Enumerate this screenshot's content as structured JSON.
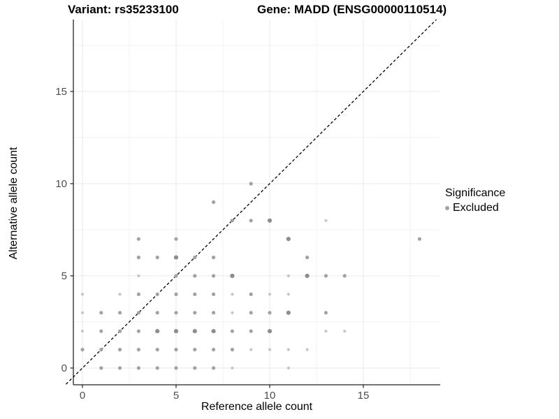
{
  "chart_data": {
    "type": "scatter",
    "title_left": "Variant: rs35233100",
    "title_right": "Gene: MADD (ENSG00000110514)",
    "xlabel": "Reference allele count",
    "ylabel": "Alternative allele count",
    "xlim": [
      -0.5,
      19.1
    ],
    "ylim": [
      -0.9,
      18.9
    ],
    "x_major_ticks": [
      0,
      5,
      10,
      15
    ],
    "y_major_ticks": [
      0,
      5,
      10,
      15
    ],
    "x_minor_gridlines": [
      2.5,
      7.5,
      12.5,
      17.5
    ],
    "y_minor_gridlines": [
      2.5,
      7.5,
      12.5,
      17.5
    ],
    "grid": true,
    "identity_line": {
      "type": "y=x",
      "style": "dashed",
      "color": "#000000"
    },
    "legend": {
      "title": "Significance",
      "position": "right",
      "items": [
        {
          "label": "Excluded",
          "color": "#a2a2a2"
        }
      ]
    },
    "point_styles": {
      "1": {
        "color": "#c6c6c6",
        "r": 2.1
      },
      "2": {
        "color": "#a2a2a2",
        "r": 2.6
      },
      "3": {
        "color": "#8d8d8d",
        "r": 3.1
      }
    },
    "points_format": [
      "reference_allele_count",
      "alternative_allele_count",
      "shade_weight"
    ],
    "points": [
      [
        1,
        0,
        2
      ],
      [
        2,
        0,
        2
      ],
      [
        3,
        0,
        2
      ],
      [
        4,
        0,
        2
      ],
      [
        5,
        0,
        2
      ],
      [
        6,
        0,
        2
      ],
      [
        7,
        0,
        2
      ],
      [
        8,
        0,
        1
      ],
      [
        11,
        0,
        1
      ],
      [
        0,
        1,
        2
      ],
      [
        1,
        1,
        2
      ],
      [
        2,
        1,
        2
      ],
      [
        3,
        1,
        2
      ],
      [
        4,
        1,
        2
      ],
      [
        5,
        1,
        2
      ],
      [
        6,
        1,
        2
      ],
      [
        7,
        1,
        2
      ],
      [
        8,
        1,
        2
      ],
      [
        9,
        1,
        1
      ],
      [
        10,
        1,
        1
      ],
      [
        11,
        1,
        1
      ],
      [
        12,
        1,
        1
      ],
      [
        0,
        2,
        1
      ],
      [
        1,
        2,
        2
      ],
      [
        2,
        2,
        2
      ],
      [
        3,
        2,
        2
      ],
      [
        4,
        2,
        3
      ],
      [
        5,
        2,
        3
      ],
      [
        6,
        2,
        3
      ],
      [
        7,
        2,
        3
      ],
      [
        8,
        2,
        2
      ],
      [
        9,
        2,
        2
      ],
      [
        10,
        2,
        3
      ],
      [
        13,
        2,
        1
      ],
      [
        14,
        2,
        1
      ],
      [
        0,
        3,
        1
      ],
      [
        1,
        3,
        2
      ],
      [
        2,
        3,
        2
      ],
      [
        3,
        3,
        2
      ],
      [
        4,
        3,
        2
      ],
      [
        5,
        3,
        2
      ],
      [
        6,
        3,
        2
      ],
      [
        7,
        3,
        2
      ],
      [
        8,
        3,
        1
      ],
      [
        9,
        3,
        2
      ],
      [
        10,
        3,
        2
      ],
      [
        11,
        3,
        3
      ],
      [
        13,
        3,
        2
      ],
      [
        0,
        4,
        1
      ],
      [
        2,
        4,
        1
      ],
      [
        3,
        4,
        2
      ],
      [
        4,
        4,
        2
      ],
      [
        5,
        4,
        2
      ],
      [
        6,
        4,
        2
      ],
      [
        7,
        4,
        2
      ],
      [
        8,
        4,
        1
      ],
      [
        9,
        4,
        2
      ],
      [
        10,
        4,
        1
      ],
      [
        11,
        4,
        1
      ],
      [
        3,
        5,
        1
      ],
      [
        5,
        5,
        2
      ],
      [
        6,
        5,
        2
      ],
      [
        7,
        5,
        2
      ],
      [
        8,
        5,
        3
      ],
      [
        11,
        5,
        1
      ],
      [
        12,
        5,
        3
      ],
      [
        13,
        5,
        2
      ],
      [
        14,
        5,
        2
      ],
      [
        3,
        6,
        2
      ],
      [
        4,
        6,
        2
      ],
      [
        5,
        6,
        3
      ],
      [
        6,
        6,
        2
      ],
      [
        7,
        6,
        2
      ],
      [
        12,
        6,
        2
      ],
      [
        3,
        7,
        2
      ],
      [
        5,
        7,
        2
      ],
      [
        11,
        7,
        3
      ],
      [
        18,
        7,
        2
      ],
      [
        8,
        8,
        2
      ],
      [
        9,
        8,
        2
      ],
      [
        10,
        8,
        3
      ],
      [
        13,
        8,
        1
      ],
      [
        7,
        9,
        2
      ],
      [
        9,
        10,
        2
      ]
    ]
  },
  "colors": {
    "background": "#ffffff",
    "axis_line": "#222222",
    "tick_label": "#4d4d4d",
    "grid_major": "#e8e8e8",
    "grid_minor": "#f3f3f3"
  }
}
